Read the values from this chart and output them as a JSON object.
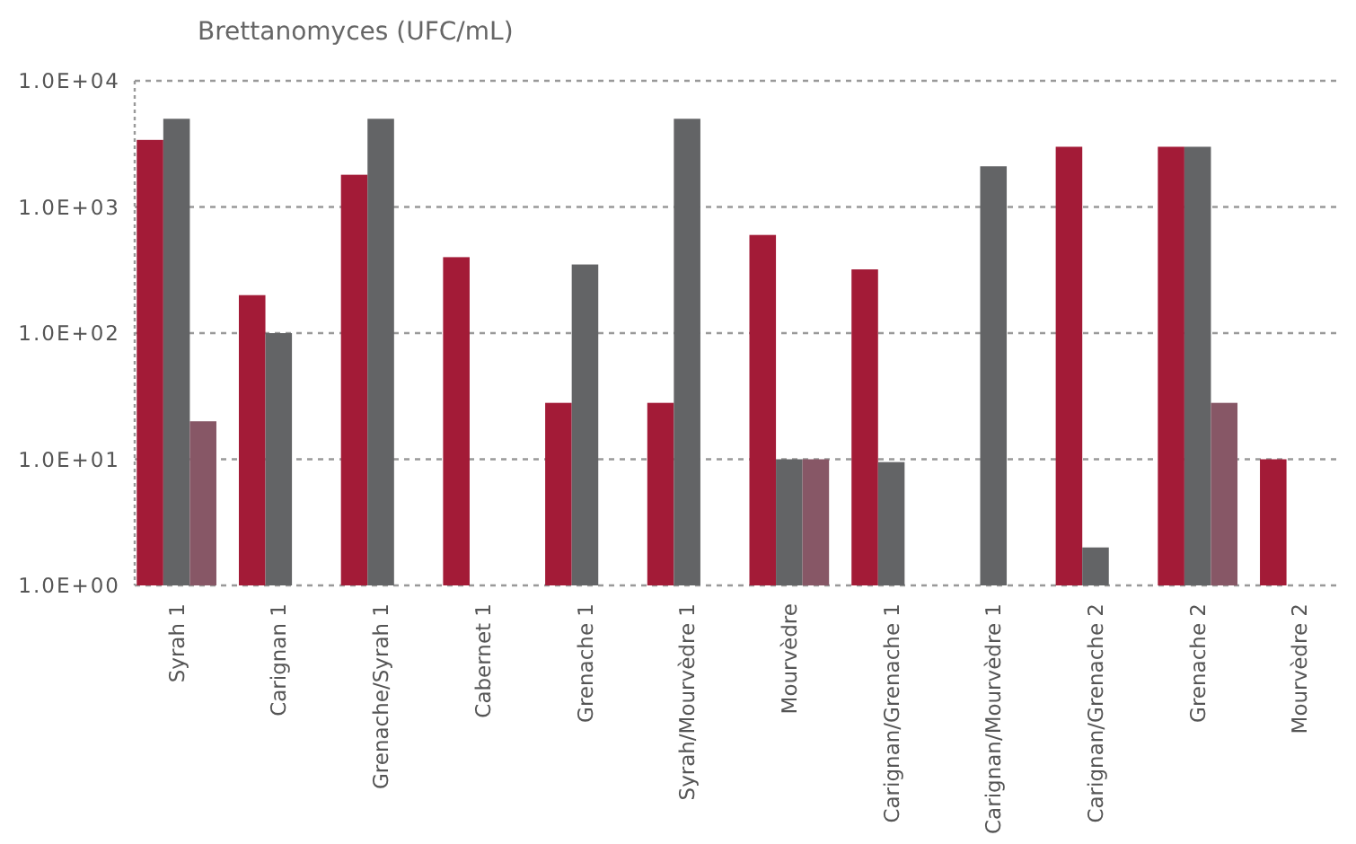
{
  "chart_data": {
    "type": "bar",
    "ylabel": "Brettanomyces (UFC/mL)",
    "categories": [
      "Syrah 1",
      "Carignan 1",
      "Grenache/Syrah 1",
      "Cabernet 1",
      "Grenache 1",
      "Syrah/Mourvèdre 1",
      "Mourvèdre",
      "Carignan/Grenache 1",
      "Carignan/Mourvèdre 1",
      "Carignan/Grenache 2",
      "Grenache 2",
      "Mourvèdre 2"
    ],
    "series": [
      {
        "color": "#a31b37",
        "values": [
          3400,
          200,
          1800,
          400,
          28,
          28,
          600,
          320,
          null,
          3000,
          3000,
          10
        ]
      },
      {
        "color": "#636466",
        "values": [
          5000,
          100,
          5000,
          null,
          350,
          5000,
          10,
          9.5,
          2100,
          2,
          3000,
          null
        ]
      },
      {
        "color": "#875766",
        "values": [
          20,
          null,
          null,
          null,
          null,
          null,
          10,
          null,
          null,
          null,
          28,
          null
        ]
      }
    ],
    "log": true,
    "ylim": [
      1,
      10000
    ],
    "yticks": [
      {
        "value": 1,
        "label": "1.0E+00"
      },
      {
        "value": 10,
        "label": "1.0E+01"
      },
      {
        "value": 100,
        "label": "1.0E+02"
      },
      {
        "value": 1000,
        "label": "1.0E+03"
      },
      {
        "value": 10000,
        "label": "1.0E+04"
      }
    ],
    "grid": "y"
  }
}
